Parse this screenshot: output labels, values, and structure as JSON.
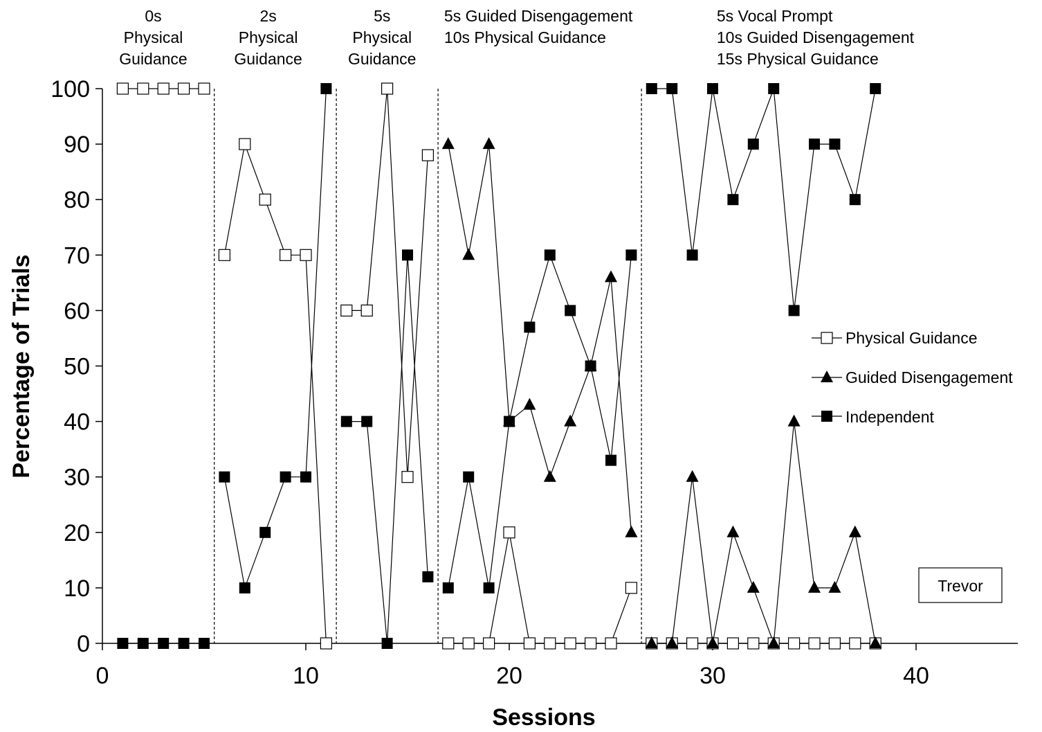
{
  "chart_data": {
    "type": "line",
    "xlabel": "Sessions",
    "ylabel": "Percentage of Trials",
    "xlim": [
      0,
      45
    ],
    "ylim": [
      0,
      100
    ],
    "x_ticks": [
      0,
      10,
      20,
      30,
      40
    ],
    "y_ticks": [
      0,
      10,
      20,
      30,
      40,
      50,
      60,
      70,
      80,
      90,
      100
    ],
    "grid": false,
    "legend_position": "right",
    "participant": "Trevor",
    "phase_change_lines": [
      5.5,
      11.5,
      16.5,
      26.5
    ],
    "phases": [
      {
        "lines": [
          "0s",
          "Physical",
          "Guidance"
        ],
        "align": "center",
        "x_center": 2.5
      },
      {
        "lines": [
          "2s",
          "Physical",
          "Guidance"
        ],
        "align": "center",
        "x_center": 8.15
      },
      {
        "lines": [
          "5s",
          "Physical",
          "Guidance"
        ],
        "align": "center",
        "x_center": 13.75
      },
      {
        "lines": [
          "5s Guided Disengagement",
          "10s Physical Guidance"
        ],
        "align": "start",
        "x_start": 16.8
      },
      {
        "lines": [
          "5s Vocal Prompt",
          "10s Guided Disengagement",
          "15s Physical Guidance"
        ],
        "align": "start",
        "x_start": 30.2
      }
    ],
    "series": [
      {
        "name": "Physical Guidance",
        "marker": "square-open",
        "segments": [
          [
            [
              1,
              100
            ],
            [
              2,
              100
            ],
            [
              3,
              100
            ],
            [
              4,
              100
            ],
            [
              5,
              100
            ]
          ],
          [
            [
              6,
              70
            ],
            [
              7,
              90
            ],
            [
              8,
              80
            ],
            [
              9,
              70
            ],
            [
              10,
              70
            ],
            [
              11,
              0
            ]
          ],
          [
            [
              12,
              60
            ],
            [
              13,
              60
            ],
            [
              14,
              100
            ],
            [
              15,
              30
            ],
            [
              16,
              88
            ]
          ],
          [
            [
              17,
              0
            ],
            [
              18,
              0
            ],
            [
              19,
              0
            ],
            [
              20,
              20
            ],
            [
              21,
              0
            ],
            [
              22,
              0
            ],
            [
              23,
              0
            ],
            [
              24,
              0
            ],
            [
              25,
              0
            ],
            [
              26,
              10
            ]
          ],
          [
            [
              27,
              0
            ],
            [
              28,
              0
            ],
            [
              29,
              0
            ],
            [
              30,
              0
            ],
            [
              31,
              0
            ],
            [
              32,
              0
            ],
            [
              33,
              0
            ],
            [
              34,
              0
            ],
            [
              35,
              0
            ],
            [
              36,
              0
            ],
            [
              37,
              0
            ],
            [
              38,
              0
            ]
          ]
        ]
      },
      {
        "name": "Guided Disengagement",
        "marker": "triangle-filled",
        "segments": [
          [
            [
              17,
              90
            ],
            [
              18,
              70
            ],
            [
              19,
              90
            ],
            [
              20,
              40
            ],
            [
              21,
              43
            ],
            [
              22,
              30
            ],
            [
              23,
              40
            ],
            [
              24,
              50
            ],
            [
              25,
              66
            ],
            [
              26,
              20
            ]
          ],
          [
            [
              27,
              0
            ],
            [
              28,
              0
            ],
            [
              29,
              30
            ],
            [
              30,
              0
            ],
            [
              31,
              20
            ],
            [
              32,
              10
            ],
            [
              33,
              0
            ],
            [
              34,
              40
            ],
            [
              35,
              10
            ],
            [
              36,
              10
            ],
            [
              37,
              20
            ],
            [
              38,
              0
            ]
          ]
        ]
      },
      {
        "name": "Independent",
        "marker": "square-filled",
        "segments": [
          [
            [
              1,
              0
            ],
            [
              2,
              0
            ],
            [
              3,
              0
            ],
            [
              4,
              0
            ],
            [
              5,
              0
            ]
          ],
          [
            [
              6,
              30
            ],
            [
              7,
              10
            ],
            [
              8,
              20
            ],
            [
              9,
              30
            ],
            [
              10,
              30
            ],
            [
              11,
              100
            ]
          ],
          [
            [
              12,
              40
            ],
            [
              13,
              40
            ],
            [
              14,
              0
            ],
            [
              15,
              70
            ],
            [
              16,
              12
            ]
          ],
          [
            [
              17,
              10
            ],
            [
              18,
              30
            ],
            [
              19,
              10
            ],
            [
              20,
              40
            ],
            [
              21,
              57
            ],
            [
              22,
              70
            ],
            [
              23,
              60
            ],
            [
              24,
              50
            ],
            [
              25,
              33
            ],
            [
              26,
              70
            ]
          ],
          [
            [
              27,
              100
            ],
            [
              28,
              100
            ],
            [
              29,
              70
            ],
            [
              30,
              100
            ],
            [
              31,
              80
            ],
            [
              32,
              90
            ],
            [
              33,
              100
            ],
            [
              34,
              60
            ],
            [
              35,
              90
            ],
            [
              36,
              90
            ],
            [
              37,
              80
            ],
            [
              38,
              100
            ]
          ]
        ]
      }
    ]
  }
}
